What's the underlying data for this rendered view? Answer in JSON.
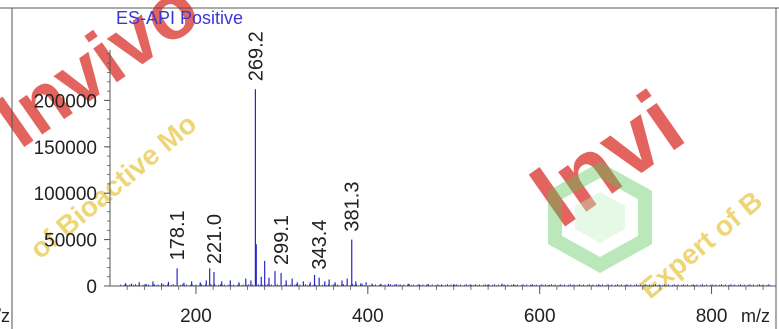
{
  "chart_data": {
    "type": "bar",
    "title": "ES-API Positive",
    "xlabel": "m/z",
    "ylabel": "",
    "left_cut_label": "/z",
    "xlim": [
      100,
      875
    ],
    "ylim": [
      0,
      250000
    ],
    "xticks": [
      200,
      400,
      600,
      800
    ],
    "yticks": [
      0,
      50000,
      100000,
      150000,
      200000
    ],
    "labeled_peaks": [
      {
        "label": "178.1",
        "x": 178.1,
        "y": 19000
      },
      {
        "label": "221.0",
        "x": 221.0,
        "y": 15000
      },
      {
        "label": "269.2",
        "x": 269.2,
        "y": 212000
      },
      {
        "label": "299.1",
        "x": 299.1,
        "y": 14000
      },
      {
        "label": "343.4",
        "x": 343.4,
        "y": 9000
      },
      {
        "label": "381.3",
        "x": 381.3,
        "y": 50000
      }
    ],
    "minor_peaks": [
      {
        "x": 118,
        "y": 3000
      },
      {
        "x": 125,
        "y": 2500
      },
      {
        "x": 134,
        "y": 4000
      },
      {
        "x": 142,
        "y": 2000
      },
      {
        "x": 150,
        "y": 5000
      },
      {
        "x": 160,
        "y": 3000
      },
      {
        "x": 168,
        "y": 4500
      },
      {
        "x": 186,
        "y": 3500
      },
      {
        "x": 195,
        "y": 5000
      },
      {
        "x": 205,
        "y": 4000
      },
      {
        "x": 212,
        "y": 6000
      },
      {
        "x": 216,
        "y": 19000
      },
      {
        "x": 230,
        "y": 5000
      },
      {
        "x": 240,
        "y": 6000
      },
      {
        "x": 250,
        "y": 4000
      },
      {
        "x": 258,
        "y": 8000
      },
      {
        "x": 264,
        "y": 6000
      },
      {
        "x": 270.2,
        "y": 45000
      },
      {
        "x": 276,
        "y": 10000
      },
      {
        "x": 280,
        "y": 27000
      },
      {
        "x": 285,
        "y": 9000
      },
      {
        "x": 292,
        "y": 16000
      },
      {
        "x": 305,
        "y": 6000
      },
      {
        "x": 312,
        "y": 8000
      },
      {
        "x": 318,
        "y": 4000
      },
      {
        "x": 325,
        "y": 5000
      },
      {
        "x": 333,
        "y": 4000
      },
      {
        "x": 338,
        "y": 12000
      },
      {
        "x": 350,
        "y": 5000
      },
      {
        "x": 355,
        "y": 7000
      },
      {
        "x": 362,
        "y": 4000
      },
      {
        "x": 370,
        "y": 6000
      },
      {
        "x": 376,
        "y": 8000
      },
      {
        "x": 386,
        "y": 5000
      },
      {
        "x": 392,
        "y": 3000
      },
      {
        "x": 398,
        "y": 4000
      },
      {
        "x": 405,
        "y": 2500
      },
      {
        "x": 415,
        "y": 2000
      },
      {
        "x": 424,
        "y": 2500
      },
      {
        "x": 433,
        "y": 2000
      },
      {
        "x": 447,
        "y": 2500
      },
      {
        "x": 460,
        "y": 1500
      },
      {
        "x": 470,
        "y": 2000
      },
      {
        "x": 486,
        "y": 1500
      },
      {
        "x": 500,
        "y": 2000
      },
      {
        "x": 520,
        "y": 1500
      },
      {
        "x": 540,
        "y": 1500
      },
      {
        "x": 556,
        "y": 2500
      },
      {
        "x": 570,
        "y": 1200
      },
      {
        "x": 590,
        "y": 1200
      },
      {
        "x": 610,
        "y": 1000
      },
      {
        "x": 640,
        "y": 1000
      },
      {
        "x": 670,
        "y": 1000
      },
      {
        "x": 700,
        "y": 800
      },
      {
        "x": 740,
        "y": 800
      },
      {
        "x": 780,
        "y": 800
      },
      {
        "x": 820,
        "y": 700
      },
      {
        "x": 860,
        "y": 700
      }
    ],
    "colors": {
      "peaks": "#2626c8",
      "axis": "#555555",
      "text": "#222222",
      "title": "#3838d8"
    },
    "watermark": {
      "text_big": "InvivoChem",
      "text_arc": "Expert of Bioactive Molecules",
      "color": "#d9342b",
      "arc_color": "#e0b200",
      "hex_color": "#3fbf3f"
    }
  }
}
